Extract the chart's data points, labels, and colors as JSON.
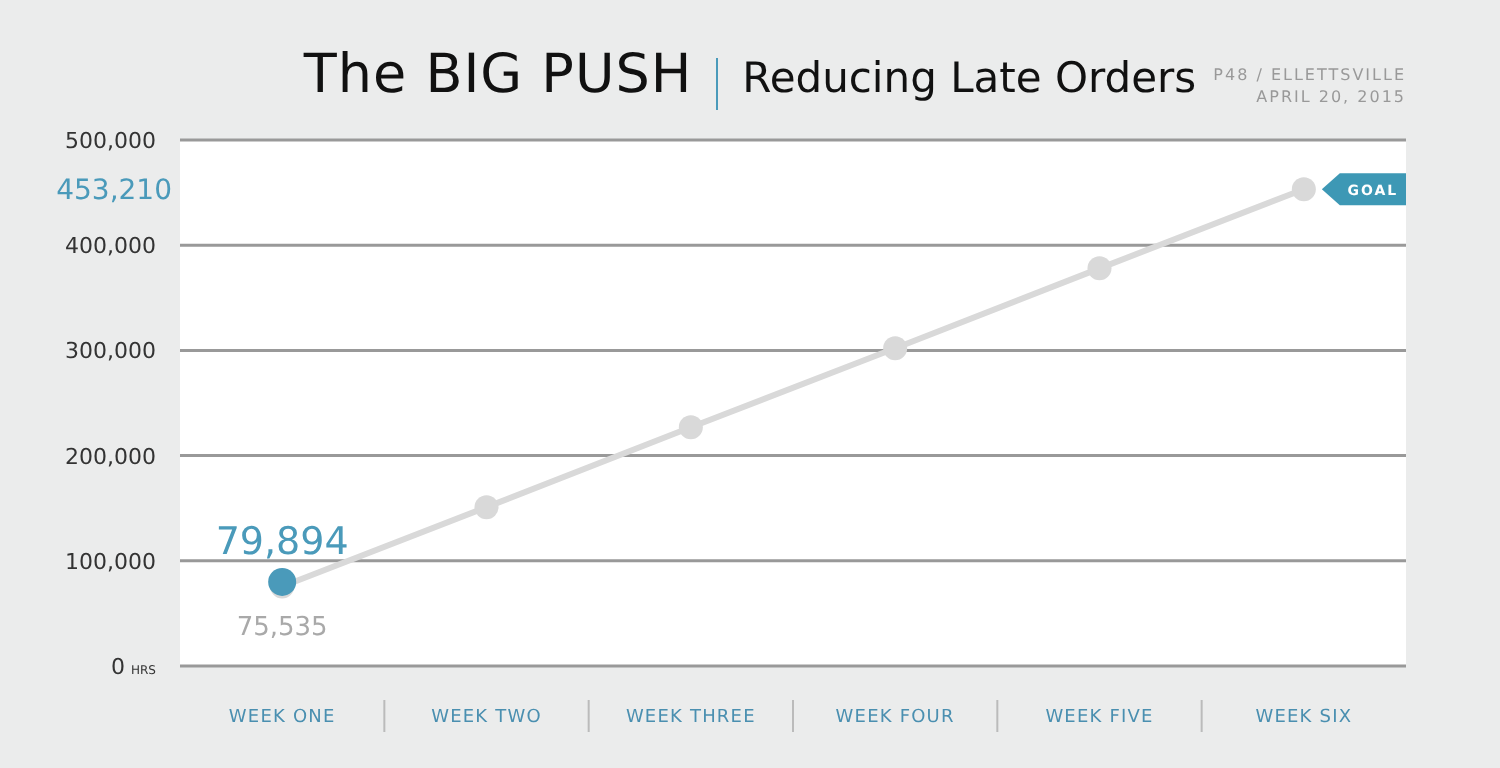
{
  "chart_data": {
    "type": "line",
    "title": "The BIG PUSH",
    "subtitle": "Reducing Late Orders",
    "categories": [
      "WEEK ONE",
      "WEEK TWO",
      "WEEK THREE",
      "WEEK FOUR",
      "WEEK FIVE",
      "WEEK SIX"
    ],
    "series": [
      {
        "color": "#d9d9d9",
        "values": [
          75535,
          151000,
          227000,
          302000,
          378000,
          453210
        ],
        "value_labels": [
          "75,535",
          null,
          null,
          null,
          null,
          null
        ]
      },
      {
        "color": "#4a9aba",
        "values": [
          79894,
          null,
          null,
          null,
          null,
          null
        ],
        "value_labels": [
          "79,894",
          null,
          null,
          null,
          null,
          null
        ]
      }
    ],
    "ylim": [
      0,
      500000
    ],
    "yticks": [
      {
        "value": 0,
        "label": "0 HRS"
      },
      {
        "value": 100000,
        "label": "100,000"
      },
      {
        "value": 200000,
        "label": "200,000"
      },
      {
        "value": 300000,
        "label": "300,000"
      },
      {
        "value": 400000,
        "label": "400,000"
      },
      {
        "value": 500000,
        "label": "500,000"
      }
    ],
    "grid": "y",
    "marker": "circle",
    "legend": false,
    "annotations": [
      "GOAL",
      "453,210",
      "P48 / ELLETTSVILLE",
      "APRIL 20, 2015"
    ]
  }
}
